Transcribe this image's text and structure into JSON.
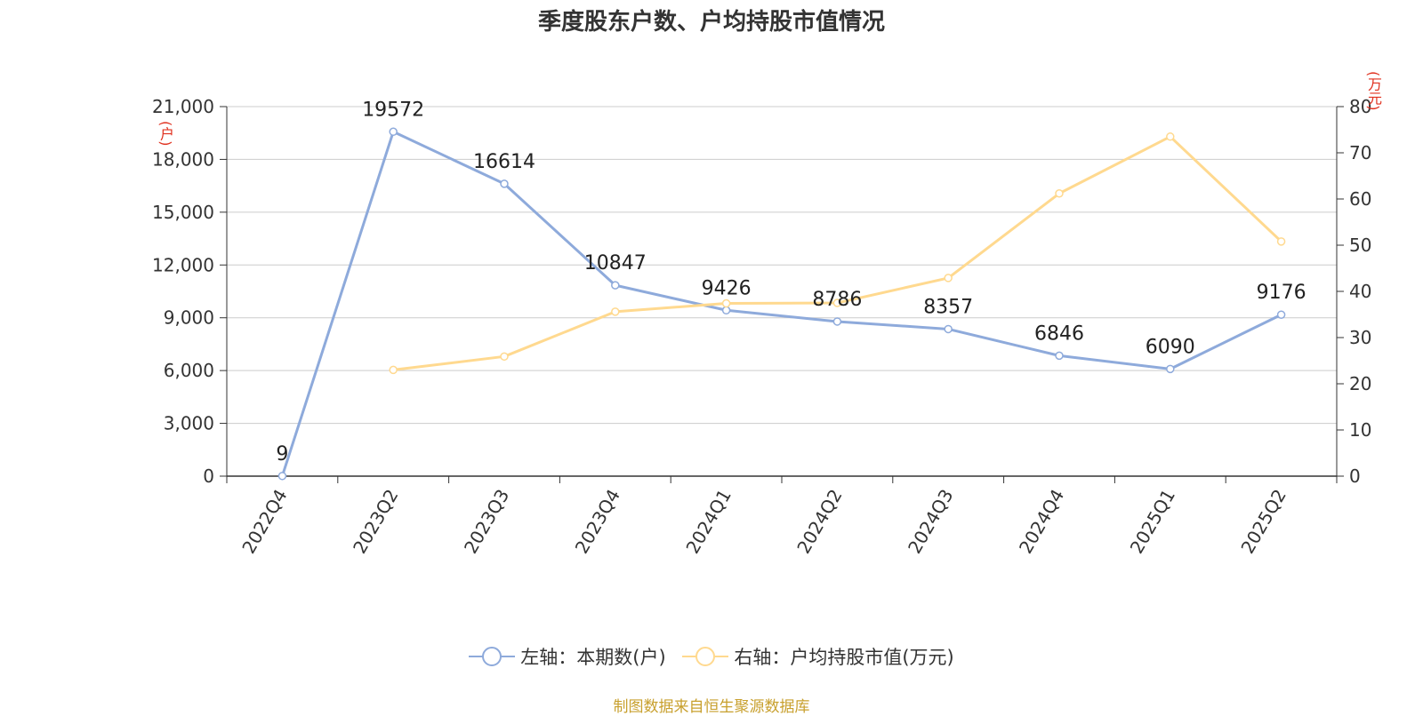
{
  "title": "季度股东户数、户均持股市值情况",
  "source": "制图数据来自恒生聚源数据库",
  "colors": {
    "left_series": "#8eaadb",
    "right_series": "#ffd98f",
    "unit": "#e0301e",
    "grid": "#cccccc",
    "axis": "#333333"
  },
  "left_unit": "(户)",
  "right_unit": "(万元)",
  "legend": [
    {
      "label": "左轴：本期数(户)",
      "color": "#8eaadb"
    },
    {
      "label": "右轴：户均持股市值(万元)",
      "color": "#ffd98f"
    }
  ],
  "chart_data": {
    "type": "line",
    "title": "季度股东户数、户均持股市值情况",
    "categories": [
      "2022Q4",
      "2023Q2",
      "2023Q3",
      "2023Q4",
      "2024Q1",
      "2024Q2",
      "2024Q3",
      "2024Q4",
      "2025Q1",
      "2025Q2"
    ],
    "series": [
      {
        "name": "左轴：本期数(户)",
        "axis": "left",
        "values": [
          9,
          19572,
          16614,
          10847,
          9426,
          8786,
          8357,
          6846,
          6090,
          9176
        ],
        "data_labels": [
          "9",
          "19572",
          "16614",
          "10847",
          "9426",
          "8786",
          "8357",
          "6846",
          "6090",
          "9176"
        ]
      },
      {
        "name": "右轴：户均持股市值(万元)",
        "axis": "right",
        "values": [
          null,
          23.0,
          25.9,
          35.6,
          37.4,
          37.5,
          42.9,
          61.2,
          73.5,
          50.8
        ]
      }
    ],
    "y_left": {
      "min": 0,
      "max": 21000,
      "ticks": [
        0,
        3000,
        6000,
        9000,
        12000,
        15000,
        18000,
        21000
      ],
      "tick_labels": [
        "0",
        "3,000",
        "6,000",
        "9,000",
        "12,000",
        "15,000",
        "18,000",
        "21,000"
      ],
      "label": "(户)"
    },
    "y_right": {
      "min": 0,
      "max": 80,
      "ticks": [
        0,
        10,
        20,
        30,
        40,
        50,
        60,
        70,
        80
      ],
      "tick_labels": [
        "0",
        "10",
        "20",
        "30",
        "40",
        "50",
        "60",
        "70",
        "80"
      ],
      "label": "(万元)"
    },
    "grid": true,
    "legend_position": "bottom"
  }
}
